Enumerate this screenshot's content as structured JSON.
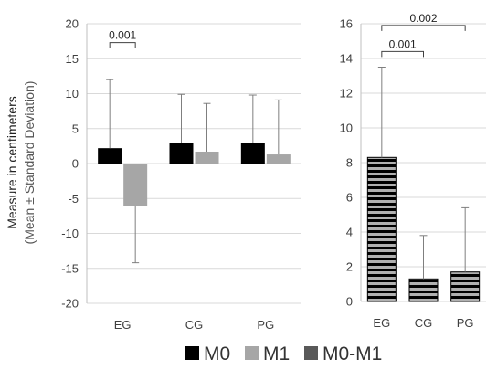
{
  "y_axis_label": {
    "line1": "Measure in centimeters",
    "line2": "(Mean ± Standard Deviation)"
  },
  "legend": [
    {
      "label": "M0",
      "color": "#000000",
      "pattern": "solid"
    },
    {
      "label": "M1",
      "color": "#a6a6a6",
      "pattern": "solid"
    },
    {
      "label": "M0-M1",
      "color": "#595959",
      "pattern": "solid"
    }
  ],
  "chart_data": [
    {
      "type": "bar",
      "title": "",
      "categories": [
        "EG",
        "CG",
        "PG"
      ],
      "ylim": [
        -20,
        20
      ],
      "yticks": [
        -20,
        -15,
        -10,
        -5,
        0,
        5,
        10,
        15,
        20
      ],
      "grid": true,
      "series": [
        {
          "name": "M0",
          "color": "#000000",
          "values": [
            2.2,
            3.0,
            3.0
          ],
          "sd": [
            9.8,
            6.9,
            6.8
          ]
        },
        {
          "name": "M1",
          "color": "#a6a6a6",
          "values": [
            -6.1,
            1.7,
            1.3
          ],
          "sd": [
            8.1,
            6.9,
            7.8
          ]
        }
      ],
      "significance": [
        {
          "from": "EG",
          "to": "EG",
          "label": "0.001",
          "y": 17.3
        }
      ]
    },
    {
      "type": "bar",
      "title": "",
      "categories": [
        "EG",
        "CG",
        "PG"
      ],
      "ylim": [
        0,
        16
      ],
      "yticks": [
        0,
        2,
        4,
        6,
        8,
        10,
        12,
        14,
        16
      ],
      "grid": true,
      "series": [
        {
          "name": "M0-M1",
          "pattern": "horizontal-stripes",
          "values": [
            8.3,
            1.3,
            1.7
          ],
          "sd": [
            5.2,
            2.5,
            3.7
          ]
        }
      ],
      "significance": [
        {
          "from": "EG",
          "to": "CG",
          "label": "0.001",
          "y": 14.4
        },
        {
          "from": "EG",
          "to": "PG",
          "label": "0.002",
          "y": 15.9
        }
      ]
    }
  ]
}
